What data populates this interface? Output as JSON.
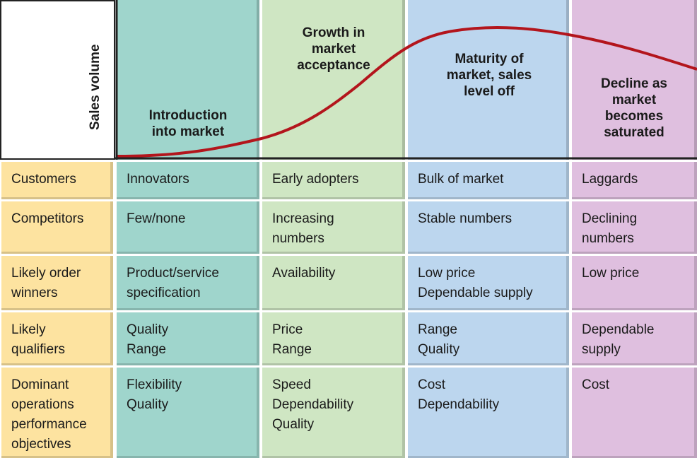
{
  "axis": {
    "y_label": "Sales volume"
  },
  "stages": [
    {
      "title": "Introduction\ninto market",
      "color": "#9fd5cc"
    },
    {
      "title": "Growth in\nmarket\nacceptance",
      "color": "#cfe6c3"
    },
    {
      "title": "Maturity of\nmarket, sales\nlevel off",
      "color": "#bcd6ee"
    },
    {
      "title": "Decline as\nmarket\nbecomes\nsaturated",
      "color": "#dfbfdf"
    }
  ],
  "row_label_color": "#fde3a0",
  "curve_color": "#b3151c",
  "rows": [
    {
      "label": "Customers",
      "cells": [
        "Innovators",
        "Early adopters",
        "Bulk of market",
        "Laggards"
      ]
    },
    {
      "label": "Competitors",
      "cells": [
        "Few/none",
        "Increasing\nnumbers",
        "Stable numbers",
        "Declining\nnumbers"
      ]
    },
    {
      "label": "Likely order\nwinners",
      "cells": [
        "Product/service\nspecification",
        "Availability",
        "Low price\nDependable supply",
        "Low price"
      ]
    },
    {
      "label": "Likely\nqualifiers",
      "cells": [
        "Quality\nRange",
        "Price\nRange",
        "Range\nQuality",
        "Dependable\nsupply"
      ]
    },
    {
      "label": "Dominant\noperations\nperformance\nobjectives",
      "cells": [
        "Flexibility\nQuality",
        "Speed\nDependability\nQuality",
        "Cost\nDependability",
        "Cost"
      ]
    }
  ]
}
